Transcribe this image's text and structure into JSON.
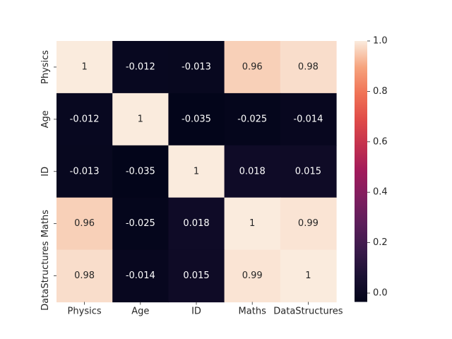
{
  "chart_data": {
    "type": "heatmap",
    "title": "",
    "xlabel": "",
    "ylabel": "",
    "x_categories": [
      "Physics",
      "Age",
      "ID",
      "Maths",
      "DataStructures"
    ],
    "y_categories": [
      "Physics",
      "Age",
      "ID",
      "Maths",
      "DataStructures"
    ],
    "values": [
      [
        1,
        -0.012,
        -0.013,
        0.96,
        0.98
      ],
      [
        -0.012,
        1,
        -0.035,
        -0.025,
        -0.014
      ],
      [
        -0.013,
        -0.035,
        1,
        0.018,
        0.015
      ],
      [
        0.96,
        -0.025,
        0.018,
        1,
        0.99
      ],
      [
        0.98,
        -0.014,
        0.015,
        0.99,
        1
      ]
    ],
    "annotations": [
      [
        "1",
        "-0.012",
        "-0.013",
        "0.96",
        "0.98"
      ],
      [
        "-0.012",
        "1",
        "-0.035",
        "-0.025",
        "-0.014"
      ],
      [
        "-0.013",
        "-0.035",
        "1",
        "0.018",
        "0.015"
      ],
      [
        "0.96",
        "-0.025",
        "0.018",
        "1",
        "0.99"
      ],
      [
        "0.98",
        "-0.014",
        "0.015",
        "0.99",
        "1"
      ]
    ],
    "colormap": "rocket",
    "colorbar": {
      "vmin": -0.035,
      "vmax": 1.0,
      "ticks": [
        0.0,
        0.2,
        0.4,
        0.6,
        0.8,
        1.0
      ],
      "tick_labels": [
        "0.0",
        "0.2",
        "0.4",
        "0.6",
        "0.8",
        "1.0"
      ]
    },
    "colormap_stops": [
      [
        0.0,
        "#03051a"
      ],
      [
        0.1,
        "#1b1133"
      ],
      [
        0.2,
        "#3a1a4b"
      ],
      [
        0.3,
        "#5c1e5a"
      ],
      [
        0.4,
        "#7f1e5f"
      ],
      [
        0.5,
        "#a11a5b"
      ],
      [
        0.6,
        "#c3314e"
      ],
      [
        0.7,
        "#e04c48"
      ],
      [
        0.8,
        "#f07356"
      ],
      [
        0.9,
        "#f6a47e"
      ],
      [
        1.0,
        "#faebdd"
      ]
    ]
  }
}
